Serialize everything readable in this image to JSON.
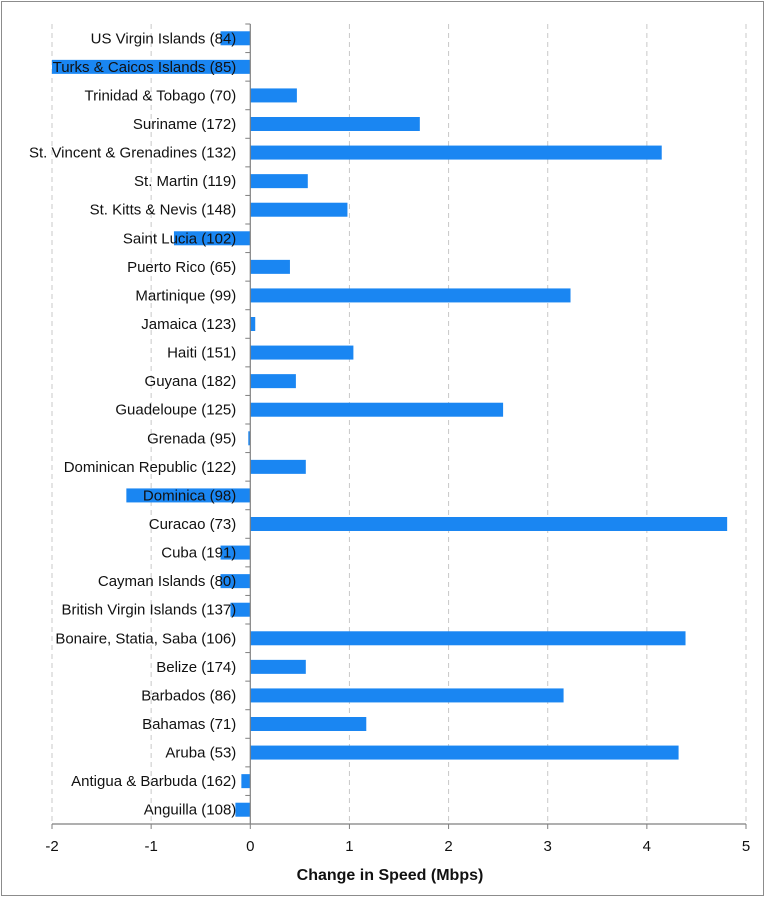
{
  "chart_data": {
    "type": "bar",
    "orientation": "horizontal",
    "title": "",
    "xlabel": "Change in Speed (Mbps)",
    "ylabel": "",
    "xlim": [
      -2,
      5
    ],
    "xticks": [
      -2,
      -1,
      0,
      1,
      2,
      3,
      4,
      5
    ],
    "grid": "vertical dashed",
    "legend": "none",
    "bar_color": "#1a86f2",
    "categories": [
      "US Virgin Islands (84)",
      "Turks & Caicos Islands (85)",
      "Trinidad & Tobago (70)",
      "Suriname (172)",
      "St. Vincent & Grenadines (132)",
      "St. Martin (119)",
      "St. Kitts & Nevis (148)",
      "Saint Lucia (102)",
      "Puerto Rico (65)",
      "Martinique (99)",
      "Jamaica (123)",
      "Haiti (151)",
      "Guyana (182)",
      "Guadeloupe (125)",
      "Grenada (95)",
      "Dominican Republic (122)",
      "Dominica (98)",
      "Curacao (73)",
      "Cuba (191)",
      "Cayman Islands (80)",
      "British Virgin Islands (137)",
      "Bonaire, Statia, Saba (106)",
      "Belize (174)",
      "Barbados (86)",
      "Bahamas (71)",
      "Aruba (53)",
      "Antigua & Barbuda (162)",
      "Anguilla (108)"
    ],
    "values": [
      -0.3,
      -2.0,
      0.47,
      1.71,
      4.15,
      0.58,
      0.98,
      -0.77,
      0.4,
      3.23,
      0.05,
      1.04,
      0.46,
      2.55,
      -0.02,
      0.56,
      -1.25,
      4.81,
      -0.3,
      -0.3,
      -0.2,
      4.39,
      0.56,
      3.16,
      1.17,
      4.32,
      -0.09,
      -0.15
    ]
  }
}
